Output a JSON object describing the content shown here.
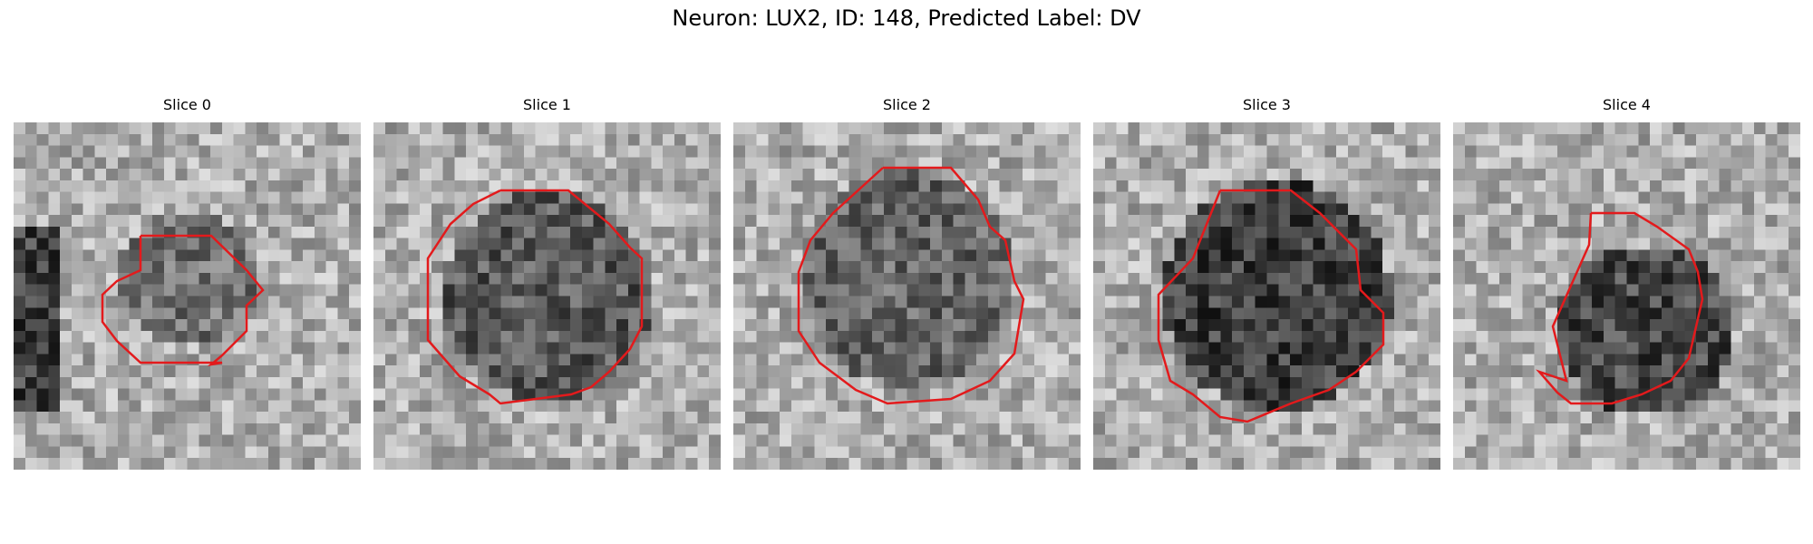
{
  "figure": {
    "title": "Neuron: LUX2, ID: 148, Predicted Label: DV"
  },
  "colors": {
    "contour": "#e31a1c",
    "background": "#ffffff"
  },
  "slices": [
    {
      "title": "Slice 0",
      "cell_brightness": 0.45
    },
    {
      "title": "Slice 1",
      "cell_brightness": 0.35
    },
    {
      "title": "Slice 2",
      "cell_brightness": 0.4
    },
    {
      "title": "Slice 3",
      "cell_brightness": 0.25
    },
    {
      "title": "Slice 4",
      "cell_brightness": 0.28
    }
  ]
}
